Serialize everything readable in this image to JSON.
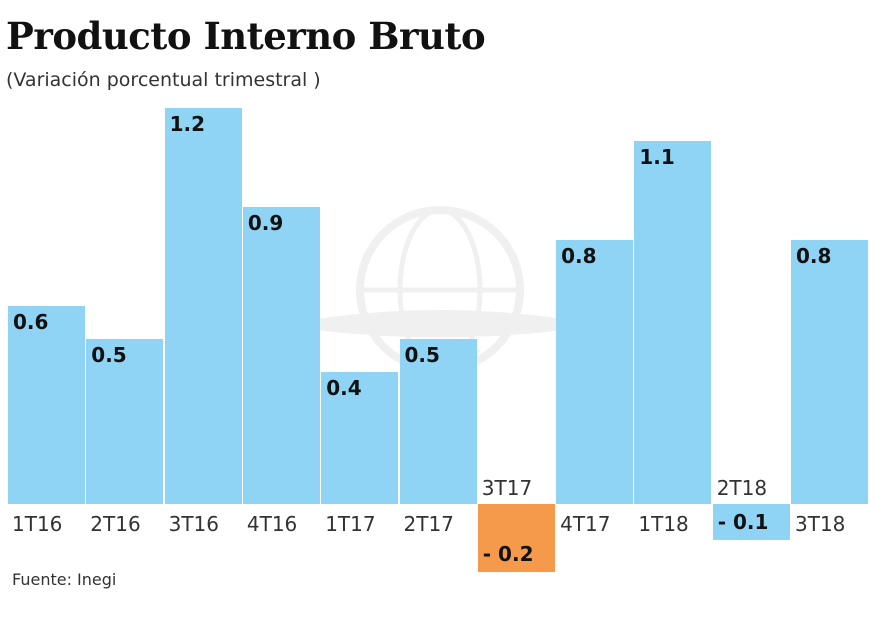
{
  "header": {
    "title": "Producto Interno Bruto",
    "subtitle": "(Variación porcentual trimestral )"
  },
  "footer": {
    "source": "Fuente: Inegi"
  },
  "colors": {
    "positive": "#8fd3f5",
    "highlight_negative": "#f5994a"
  },
  "chart_data": {
    "type": "bar",
    "title": "Producto Interno Bruto",
    "subtitle": "(Variación porcentual trimestral )",
    "xlabel": "",
    "ylabel": "Variación porcentual trimestral",
    "categories": [
      "1T16",
      "2T16",
      "3T16",
      "4T16",
      "1T17",
      "2T17",
      "3T17",
      "4T17",
      "1T18",
      "2T18",
      "3T18"
    ],
    "values": [
      0.6,
      0.5,
      1.2,
      0.9,
      0.4,
      0.5,
      -0.2,
      0.8,
      1.1,
      -0.1,
      0.8
    ],
    "value_labels": [
      "0.6",
      "0.5",
      "1.2",
      "0.9",
      "0.4",
      "0.5",
      "- 0.2",
      "0.8",
      "1.1",
      "- 0.1",
      "0.8"
    ],
    "grid": false,
    "legend": null,
    "source": "Fuente: Inegi"
  }
}
